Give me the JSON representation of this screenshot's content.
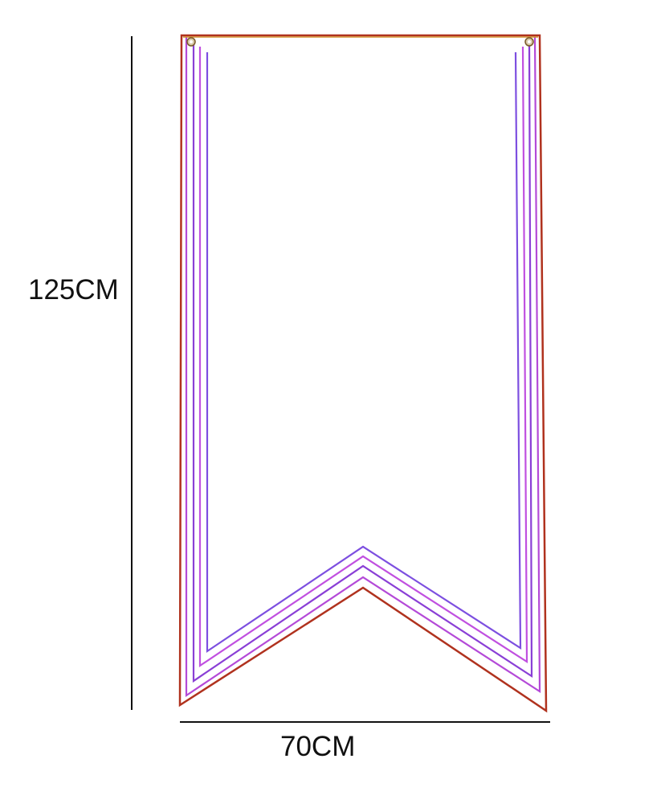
{
  "dimensions": {
    "height_label": "125CM",
    "width_label": "70CM"
  },
  "banner": {
    "shape": "swallowtail banner",
    "fill_color": "#ffffff",
    "outline_color": "#b0321e",
    "stripe_colors": [
      "#b44ad8",
      "#8a3fd6",
      "#c050e0",
      "#7d4fe0"
    ],
    "grommet_count": 2,
    "grommet_icon": "grommet-icon"
  },
  "dimension_line_color": "#111111"
}
